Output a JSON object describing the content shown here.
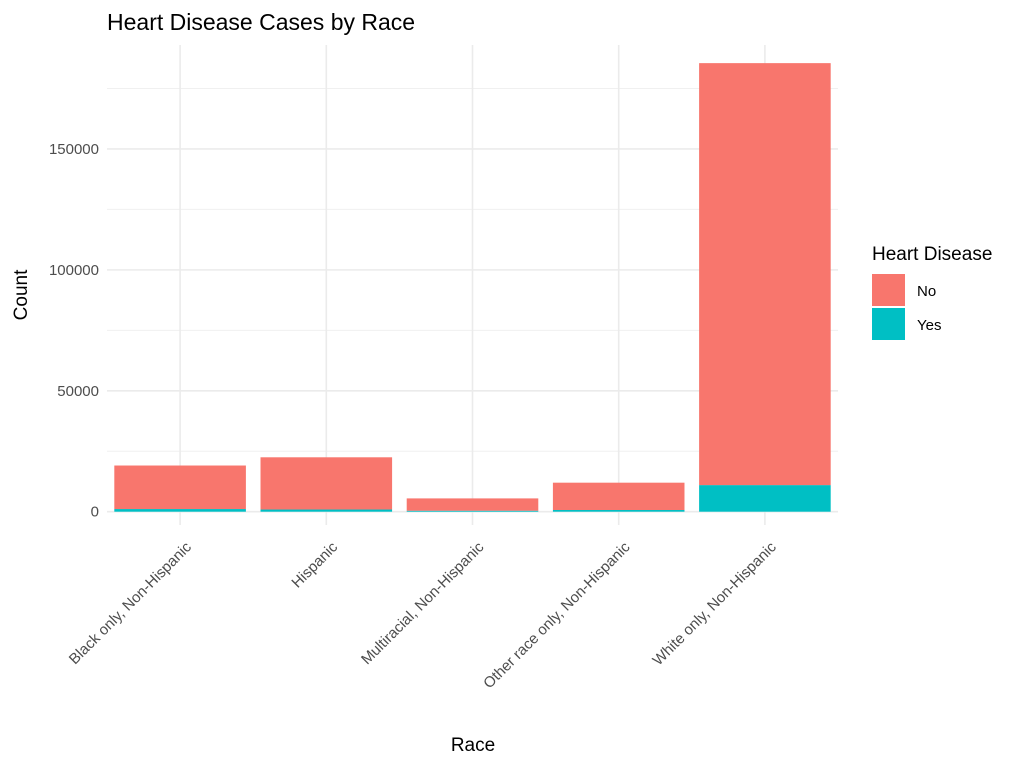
{
  "chart_data": {
    "type": "bar",
    "stacked": true,
    "title": "Heart Disease Cases by Race",
    "xlabel": "Race",
    "ylabel": "Count",
    "categories": [
      "Black only, Non-Hispanic",
      "Hispanic",
      "Multiracial, Non-Hispanic",
      "Other race only, Non-Hispanic",
      "White only, Non-Hispanic"
    ],
    "series": [
      {
        "name": "No",
        "color": "#F8766D",
        "values": [
          18000,
          21600,
          5100,
          11300,
          174500
        ]
      },
      {
        "name": "Yes",
        "color": "#00BFC4",
        "values": [
          1100,
          900,
          400,
          700,
          11000
        ]
      }
    ],
    "ylim": [
      -5500,
      193000
    ],
    "yticks": [
      0,
      50000,
      100000,
      150000
    ],
    "ytick_labels": [
      "0",
      "50000",
      "100000",
      "150000"
    ],
    "legend": {
      "title": "Heart Disease",
      "position": "right"
    },
    "grid": true
  }
}
